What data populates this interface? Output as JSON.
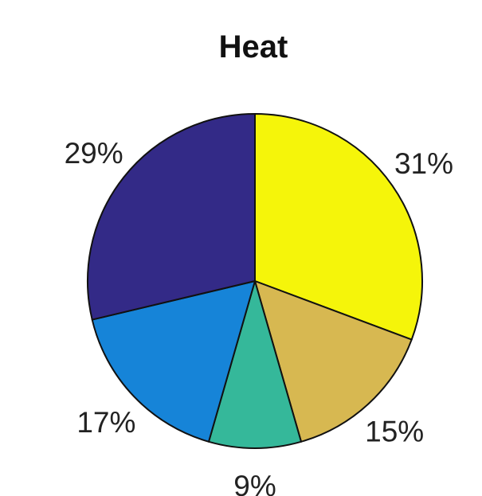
{
  "chart_data": {
    "type": "pie",
    "title": "Heat",
    "slices": [
      {
        "label": "31%",
        "value": 31,
        "color": "#f5f50a"
      },
      {
        "label": "15%",
        "value": 15,
        "color": "#d7b851"
      },
      {
        "label": "9%",
        "value": 9,
        "color": "#35b89a"
      },
      {
        "label": "17%",
        "value": 17,
        "color": "#1684d8"
      },
      {
        "label": "29%",
        "value": 29,
        "color": "#332a87"
      }
    ],
    "start_angle_deg": 90,
    "direction": "clockwise",
    "legend": "none"
  }
}
